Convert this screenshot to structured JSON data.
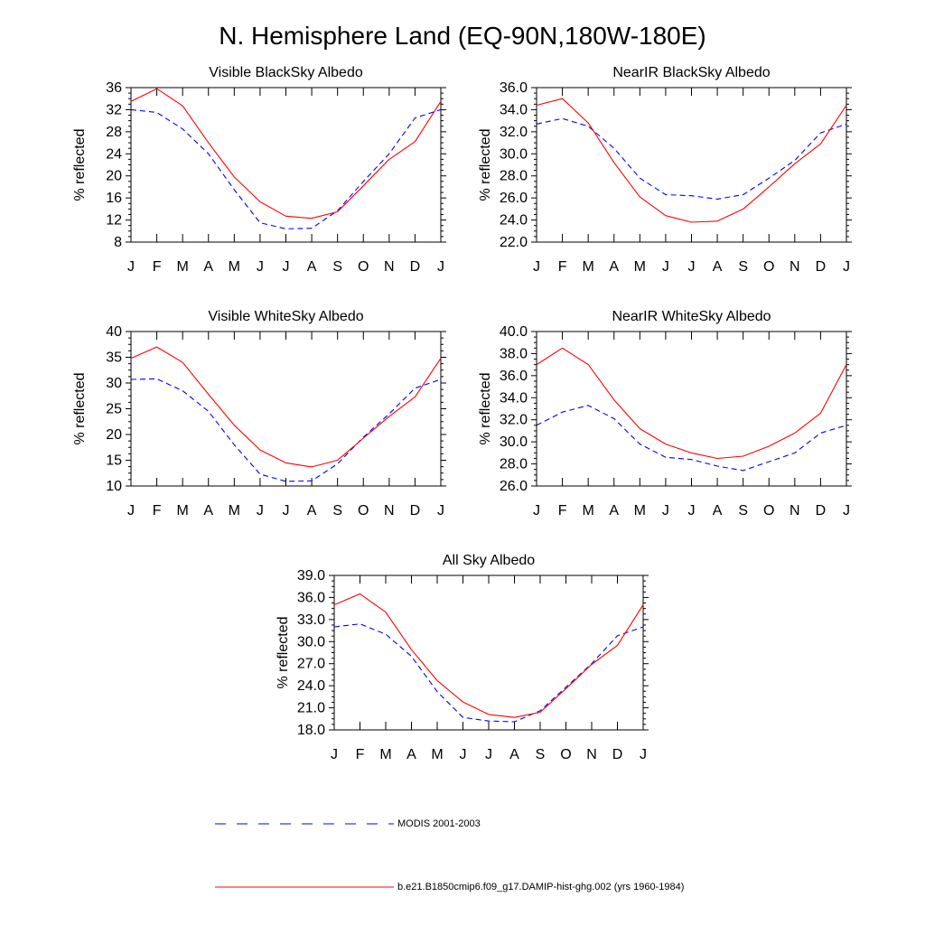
{
  "page": {
    "title": "N. Hemisphere Land (EQ-90N,180W-180E)"
  },
  "legend": {
    "items": [
      {
        "label": "MODIS 2001-2003",
        "color": "#0000ff",
        "style": "dashed"
      },
      {
        "label": "b.e21.B1850cmip6.f09_g17.DAMIP-hist-ghg.002 (yrs 1960-1984)",
        "color": "#ff0000",
        "style": "solid"
      }
    ]
  },
  "chart_data": [
    {
      "type": "line",
      "title": "Visible BlackSky Albedo",
      "xlabel": "",
      "ylabel": "% reflected",
      "categories": [
        "J",
        "F",
        "M",
        "A",
        "M",
        "J",
        "J",
        "A",
        "S",
        "O",
        "N",
        "D",
        "J"
      ],
      "ylim": [
        8,
        36
      ],
      "yticks": [
        8,
        12,
        16,
        20,
        24,
        28,
        32,
        36
      ],
      "ytick_labels": [
        "8",
        "12",
        "16",
        "20",
        "24",
        "28",
        "32",
        "36"
      ],
      "grid": false,
      "series": [
        {
          "name": "MODIS 2001-2003",
          "color": "#0000ff",
          "style": "dashed",
          "values": [
            32.0,
            31.5,
            28.5,
            24.0,
            17.5,
            11.5,
            10.4,
            10.5,
            13.7,
            19.0,
            24.0,
            30.5,
            32.0
          ]
        },
        {
          "name": "b.e21.B1850cmip6.f09_g17.DAMIP-hist-ghg.002 (yrs 1960-1984)",
          "color": "#ff0000",
          "style": "solid",
          "values": [
            33.5,
            35.8,
            32.7,
            26.0,
            19.8,
            15.3,
            12.7,
            12.3,
            13.5,
            18.2,
            23.0,
            26.2,
            33.5
          ]
        }
      ]
    },
    {
      "type": "line",
      "title": "NearIR BlackSky Albedo",
      "xlabel": "",
      "ylabel": "% reflected",
      "categories": [
        "J",
        "F",
        "M",
        "A",
        "M",
        "J",
        "J",
        "A",
        "S",
        "O",
        "N",
        "D",
        "J"
      ],
      "ylim": [
        22,
        36
      ],
      "yticks": [
        22,
        24,
        26,
        28,
        30,
        32,
        34,
        36
      ],
      "ytick_labels": [
        "22.0",
        "24.0",
        "26.0",
        "28.0",
        "30.0",
        "32.0",
        "34.0",
        "36.0"
      ],
      "grid": false,
      "series": [
        {
          "name": "MODIS 2001-2003",
          "color": "#0000ff",
          "style": "dashed",
          "values": [
            32.7,
            33.2,
            32.5,
            30.5,
            27.8,
            26.3,
            26.2,
            25.9,
            26.3,
            27.8,
            29.4,
            31.9,
            32.7
          ]
        },
        {
          "name": "b.e21.B1850cmip6.f09_g17.DAMIP-hist-ghg.002 (yrs 1960-1984)",
          "color": "#ff0000",
          "style": "solid",
          "values": [
            34.4,
            35.0,
            32.8,
            29.2,
            26.1,
            24.4,
            23.8,
            23.9,
            25.0,
            27.0,
            29.1,
            30.9,
            34.4
          ]
        }
      ]
    },
    {
      "type": "line",
      "title": "Visible WhiteSky Albedo",
      "xlabel": "",
      "ylabel": "% reflected",
      "categories": [
        "J",
        "F",
        "M",
        "A",
        "M",
        "J",
        "J",
        "A",
        "S",
        "O",
        "N",
        "D",
        "J"
      ],
      "ylim": [
        10,
        40
      ],
      "yticks": [
        10,
        15,
        20,
        25,
        30,
        35,
        40
      ],
      "ytick_labels": [
        "10",
        "15",
        "20",
        "25",
        "30",
        "35",
        "40"
      ],
      "grid": false,
      "series": [
        {
          "name": "MODIS 2001-2003",
          "color": "#0000ff",
          "style": "dashed",
          "values": [
            30.7,
            30.8,
            28.5,
            24.5,
            18.0,
            12.3,
            10.9,
            11.0,
            14.3,
            19.5,
            24.0,
            29.0,
            30.7
          ]
        },
        {
          "name": "b.e21.B1850cmip6.f09_g17.DAMIP-hist-ghg.002 (yrs 1960-1984)",
          "color": "#ff0000",
          "style": "solid",
          "values": [
            34.8,
            37.0,
            34.0,
            27.8,
            21.8,
            17.0,
            14.5,
            13.7,
            15.0,
            19.3,
            23.5,
            27.3,
            34.8
          ]
        }
      ]
    },
    {
      "type": "line",
      "title": "NearIR WhiteSky Albedo",
      "xlabel": "",
      "ylabel": "% reflected",
      "categories": [
        "J",
        "F",
        "M",
        "A",
        "M",
        "J",
        "J",
        "A",
        "S",
        "O",
        "N",
        "D",
        "J"
      ],
      "ylim": [
        26,
        40
      ],
      "yticks": [
        26,
        28,
        30,
        32,
        34,
        36,
        38,
        40
      ],
      "ytick_labels": [
        "26.0",
        "28.0",
        "30.0",
        "32.0",
        "34.0",
        "36.0",
        "38.0",
        "40.0"
      ],
      "grid": false,
      "series": [
        {
          "name": "MODIS 2001-2003",
          "color": "#0000ff",
          "style": "dashed",
          "values": [
            31.5,
            32.7,
            33.3,
            32.1,
            29.8,
            28.6,
            28.4,
            27.8,
            27.4,
            28.2,
            29.0,
            30.8,
            31.5
          ]
        },
        {
          "name": "b.e21.B1850cmip6.f09_g17.DAMIP-hist-ghg.002 (yrs 1960-1984)",
          "color": "#ff0000",
          "style": "solid",
          "values": [
            37.0,
            38.5,
            37.0,
            33.8,
            31.2,
            29.8,
            29.0,
            28.5,
            28.7,
            29.6,
            30.8,
            32.6,
            37.0
          ]
        }
      ]
    },
    {
      "type": "line",
      "title": "All Sky Albedo",
      "xlabel": "",
      "ylabel": "% reflected",
      "categories": [
        "J",
        "F",
        "M",
        "A",
        "M",
        "J",
        "J",
        "A",
        "S",
        "O",
        "N",
        "D",
        "J"
      ],
      "ylim": [
        18,
        39
      ],
      "yticks": [
        18,
        21,
        24,
        27,
        30,
        33,
        36,
        39
      ],
      "ytick_labels": [
        "18.0",
        "21.0",
        "24.0",
        "27.0",
        "30.0",
        "33.0",
        "36.0",
        "39.0"
      ],
      "grid": false,
      "series": [
        {
          "name": "MODIS 2001-2003",
          "color": "#0000ff",
          "style": "dashed",
          "values": [
            32.0,
            32.4,
            31.0,
            28.0,
            23.2,
            19.7,
            19.2,
            19.1,
            20.6,
            23.8,
            27.0,
            30.8,
            32.0
          ]
        },
        {
          "name": "b.e21.B1850cmip6.f09_g17.DAMIP-hist-ghg.002 (yrs 1960-1984)",
          "color": "#ff0000",
          "style": "solid",
          "values": [
            35.0,
            36.5,
            34.0,
            28.9,
            24.7,
            21.8,
            20.1,
            19.7,
            20.4,
            23.6,
            26.9,
            29.5,
            35.0
          ]
        }
      ]
    }
  ]
}
